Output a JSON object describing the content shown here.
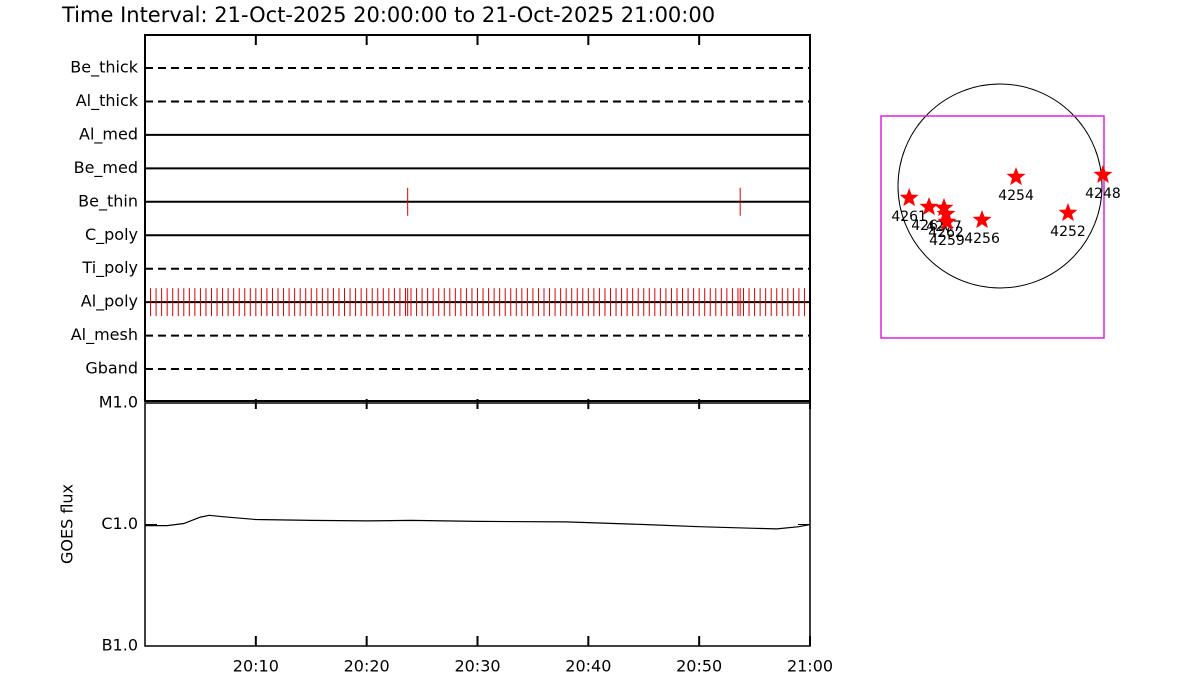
{
  "title": "Time Interval: 21-Oct-2025 20:00:00 to 21-Oct-2025 21:00:00",
  "chart_data": [
    {
      "type": "timeline",
      "color": "#e00000",
      "xlim": [
        0,
        60
      ],
      "rows": [
        {
          "name": "Be_thick",
          "style": "dashed",
          "times": []
        },
        {
          "name": "Al_thick",
          "style": "dashed",
          "times": []
        },
        {
          "name": "Al_med",
          "style": "solid",
          "times": []
        },
        {
          "name": "Be_med",
          "style": "solid",
          "times": []
        },
        {
          "name": "Be_thin",
          "style": "solid",
          "times": [
            23.7,
            53.7
          ]
        },
        {
          "name": "C_poly",
          "style": "solid",
          "times": []
        },
        {
          "name": "Ti_poly",
          "style": "dashed",
          "times": []
        },
        {
          "name": "Al_poly",
          "style": "solid",
          "times": [
            0.5,
            1,
            1.5,
            2,
            2.5,
            3,
            3.5,
            4,
            4.5,
            5,
            5.5,
            6,
            6.5,
            7,
            7.5,
            8,
            8.5,
            9,
            9.5,
            10,
            10.5,
            11,
            11.5,
            12,
            12.5,
            13,
            13.5,
            14,
            14.5,
            15,
            15.5,
            16,
            16.5,
            17,
            17.5,
            18,
            18.5,
            19,
            19.5,
            20,
            20.5,
            21,
            21.5,
            22,
            22.5,
            23,
            23.5,
            23.7,
            24,
            24.5,
            25,
            25.5,
            26,
            26.5,
            27,
            27.5,
            28,
            28.5,
            29,
            29.5,
            30,
            30.5,
            31,
            31.5,
            32,
            32.5,
            33,
            33.5,
            34,
            34.5,
            35,
            35.5,
            36,
            36.5,
            37,
            37.5,
            38,
            38.5,
            39,
            39.5,
            40,
            40.5,
            41,
            41.5,
            42,
            42.5,
            43,
            43.5,
            44,
            44.5,
            45,
            45.5,
            46,
            46.5,
            47,
            47.5,
            48,
            48.5,
            49,
            49.5,
            50,
            50.5,
            51,
            51.5,
            52,
            52.5,
            53,
            53.5,
            53.7,
            54,
            54.5,
            55,
            55.5,
            56,
            56.5,
            57,
            57.5,
            58,
            58.5,
            59,
            59.5
          ]
        },
        {
          "name": "Al_mesh",
          "style": "dashed",
          "times": []
        },
        {
          "name": "Gband",
          "style": "dashed",
          "times": []
        }
      ]
    },
    {
      "type": "line",
      "y_label": "GOES flux",
      "log_scale": true,
      "color": "#000000",
      "xlim": [
        0,
        60
      ],
      "xticks": [
        {
          "value": 10,
          "label": "20:10"
        },
        {
          "value": 20,
          "label": "20:20"
        },
        {
          "value": 30,
          "label": "20:30"
        },
        {
          "value": 40,
          "label": "20:40"
        },
        {
          "value": 50,
          "label": "20:50"
        },
        {
          "value": 60,
          "label": "21:00"
        }
      ],
      "ylim": [
        1e-07,
        1e-05
      ],
      "yticks": [
        {
          "value": 1e-07,
          "label": "B1.0"
        },
        {
          "value": 1e-06,
          "label": "C1.0"
        },
        {
          "value": 1e-05,
          "label": "M1.0"
        }
      ],
      "x": [
        0,
        2,
        3.5,
        5,
        5.8,
        7,
        10,
        15,
        20,
        24,
        30,
        38,
        45,
        50,
        55,
        57,
        59,
        60
      ],
      "values": [
        9.8e-07,
        9.8e-07,
        1.02e-06,
        1.15e-06,
        1.19e-06,
        1.16e-06,
        1.1e-06,
        1.08e-06,
        1.07e-06,
        1.08e-06,
        1.06e-06,
        1.05e-06,
        1e-06,
        9.6e-07,
        9.3e-07,
        9.2e-07,
        9.6e-07,
        1e-06
      ]
    },
    {
      "type": "sun_map",
      "color": "#ff0000",
      "disk_radius": 960,
      "regions": [
        {
          "label": "4261",
          "x": -855,
          "y": -113
        },
        {
          "label": "4263",
          "x": -668,
          "y": -198
        },
        {
          "label": "4267",
          "x": -527,
          "y": -207
        },
        {
          "label": "4262",
          "x": -508,
          "y": -264
        },
        {
          "label": "4259",
          "x": -499,
          "y": -339
        },
        {
          "label": "4256",
          "x": -169,
          "y": -320
        },
        {
          "label": "4254",
          "x": 151,
          "y": 85
        },
        {
          "label": "4252",
          "x": 640,
          "y": -254
        },
        {
          "label": "4248",
          "x": 969,
          "y": 104
        }
      ]
    }
  ]
}
